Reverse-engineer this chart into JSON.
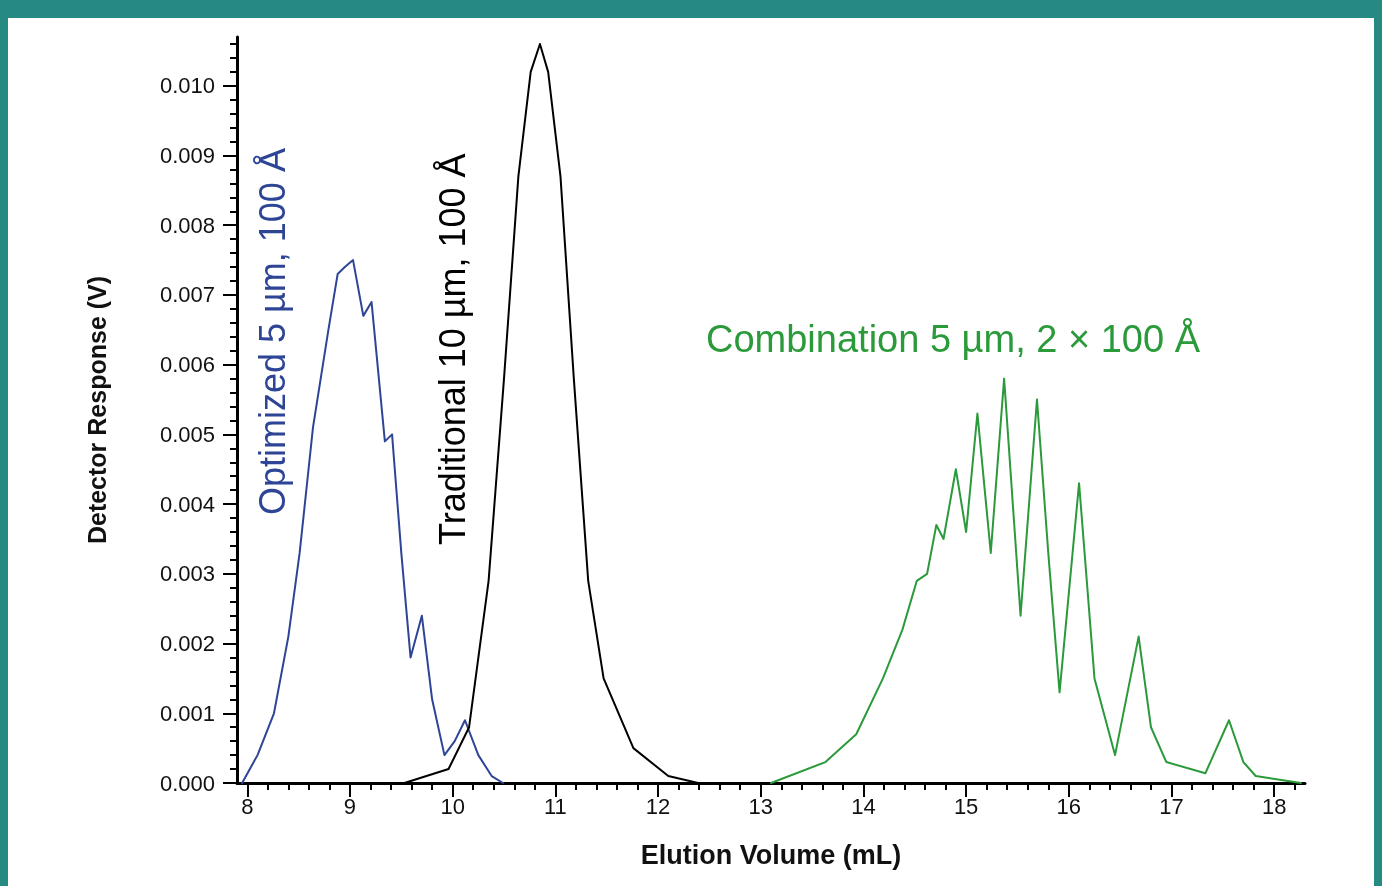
{
  "chart_data": {
    "type": "line",
    "xlabel": "Elution Volume (mL)",
    "ylabel": "Detector Response (V)",
    "xlim": [
      7.9,
      18.3
    ],
    "xticks": [
      8,
      9,
      10,
      11,
      12,
      13,
      14,
      15,
      16,
      17,
      18
    ],
    "ylim": [
      0,
      0.0107
    ],
    "yticks": [
      {
        "value": 0,
        "label": "0.000"
      },
      {
        "value": 0.001,
        "label": "0.001"
      },
      {
        "value": 0.002,
        "label": "0.002"
      },
      {
        "value": 0.003,
        "label": "0.003"
      },
      {
        "value": 0.004,
        "label": "0.004"
      },
      {
        "value": 0.005,
        "label": "0.005"
      },
      {
        "value": 0.006,
        "label": "0.006"
      },
      {
        "value": 0.007,
        "label": "0.007"
      },
      {
        "value": 0.008,
        "label": "0.008"
      },
      {
        "value": 0.009,
        "label": "0.009"
      },
      {
        "value": 0.01,
        "label": "0.010"
      }
    ],
    "grid": false,
    "legend": false,
    "marker": "none",
    "line_style": "solid",
    "series": [
      {
        "name": "Optimized 5 µm, 100 Å",
        "color": "#2e4596",
        "x": [
          7.95,
          8.1,
          8.26,
          8.4,
          8.51,
          8.64,
          8.79,
          8.88,
          8.95,
          9.03,
          9.13,
          9.21,
          9.34,
          9.41,
          9.5,
          9.59,
          9.7,
          9.8,
          9.92,
          10.02,
          10.12,
          10.25,
          10.38,
          10.49
        ],
        "values": [
          0,
          0.0004,
          0.001,
          0.0021,
          0.0033,
          0.0051,
          0.0065,
          0.0073,
          0.0074,
          0.0075,
          0.0067,
          0.0069,
          0.0049,
          0.005,
          0.0033,
          0.0018,
          0.0024,
          0.0012,
          0.0004,
          0.0006,
          0.0009,
          0.0004,
          0.0001,
          0
        ]
      },
      {
        "name": "Traditional 10 µm, 100 Å",
        "color": "#000000",
        "x": [
          9.53,
          9.96,
          10.16,
          10.35,
          10.5,
          10.64,
          10.76,
          10.85,
          10.93,
          11.05,
          11.18,
          11.32,
          11.47,
          11.76,
          12.1,
          12.39
        ],
        "values": [
          0,
          0.0002,
          0.0008,
          0.0029,
          0.0058,
          0.0087,
          0.0102,
          0.0106,
          0.0102,
          0.0087,
          0.0058,
          0.0029,
          0.0015,
          0.0005,
          0.0001,
          0
        ]
      },
      {
        "name": "Combination 5 µm, 2 × 100 Å",
        "color": "#2a9a3a",
        "x": [
          13.1,
          13.63,
          13.93,
          14.19,
          14.38,
          14.52,
          14.62,
          14.71,
          14.78,
          14.9,
          15.0,
          15.11,
          15.24,
          15.37,
          15.53,
          15.69,
          15.8,
          15.91,
          16.1,
          16.25,
          16.45,
          16.68,
          16.8,
          16.95,
          17.33,
          17.56,
          17.7,
          17.82,
          18.26
        ],
        "values": [
          0,
          0.0003,
          0.0007,
          0.0015,
          0.0022,
          0.0029,
          0.003,
          0.0037,
          0.0035,
          0.0045,
          0.0036,
          0.0053,
          0.0033,
          0.0058,
          0.0024,
          0.0055,
          0.0033,
          0.0013,
          0.0043,
          0.0015,
          0.0004,
          0.0021,
          0.0008,
          0.0003,
          0.00014,
          0.0009,
          0.0003,
          0.0001,
          0
        ]
      }
    ]
  }
}
